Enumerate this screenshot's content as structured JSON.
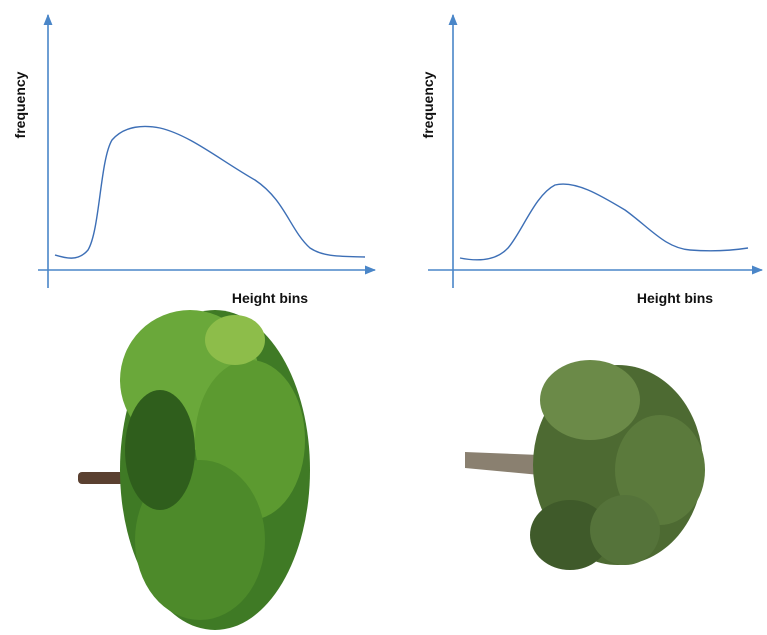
{
  "panels": [
    {
      "y_label": "frequency",
      "x_label": "Height bins"
    },
    {
      "y_label": "frequency",
      "x_label": "Height bins"
    }
  ]
}
